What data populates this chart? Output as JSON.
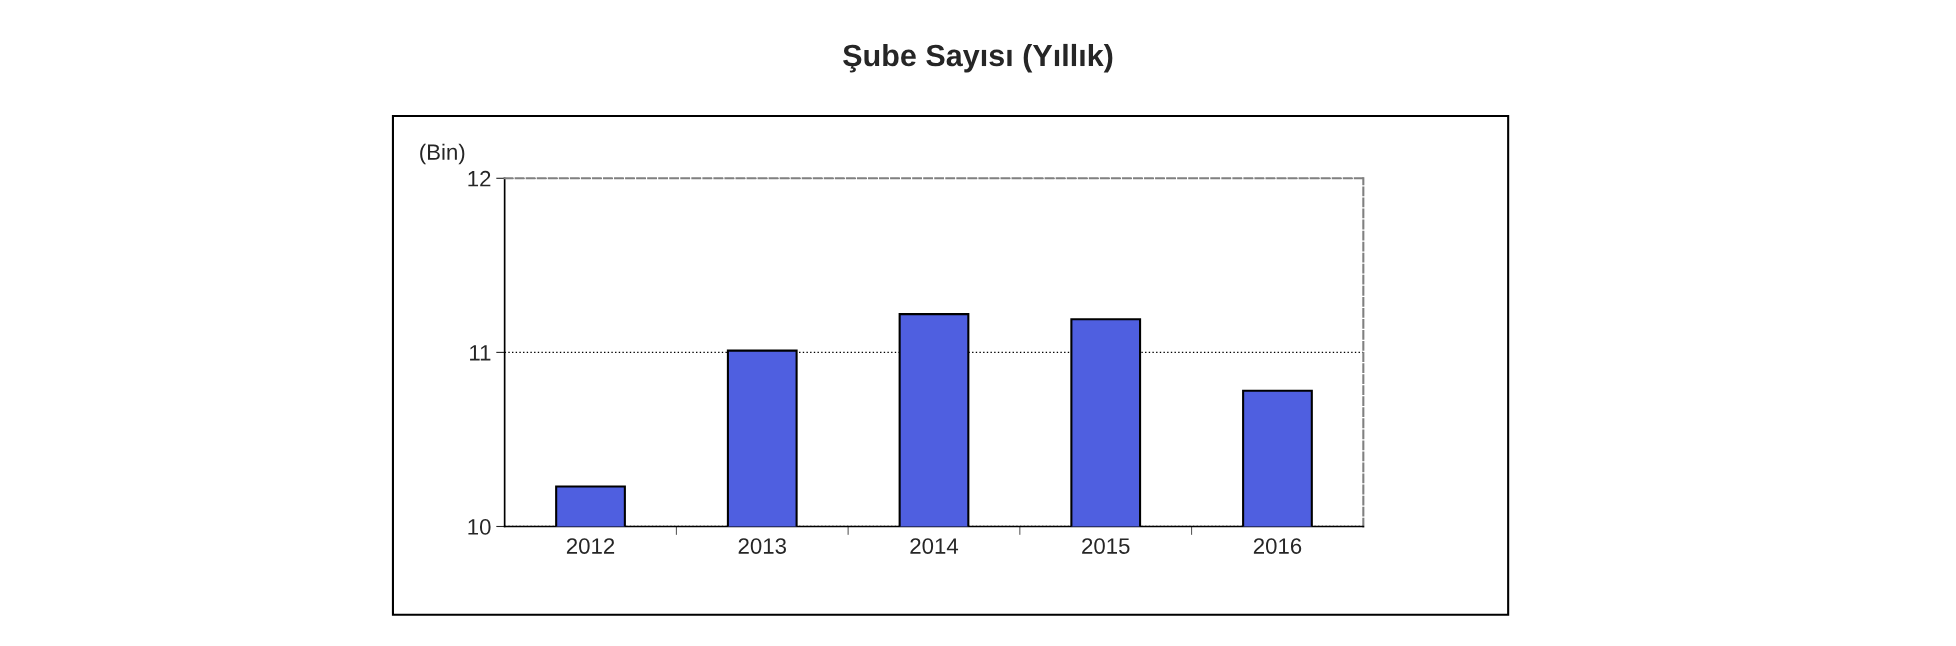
{
  "chart_data": {
    "type": "bar",
    "title": "Şube Sayısı (Yıllık)",
    "ylabel": "(Bin)",
    "categories": [
      "2012",
      "2013",
      "2014",
      "2015",
      "2016"
    ],
    "values": [
      10.23,
      11.01,
      11.22,
      11.19,
      10.78
    ],
    "color": "#4f5fe0",
    "ylim": [
      10,
      12
    ],
    "yticks": [
      10,
      11,
      12
    ],
    "grid": "y"
  }
}
